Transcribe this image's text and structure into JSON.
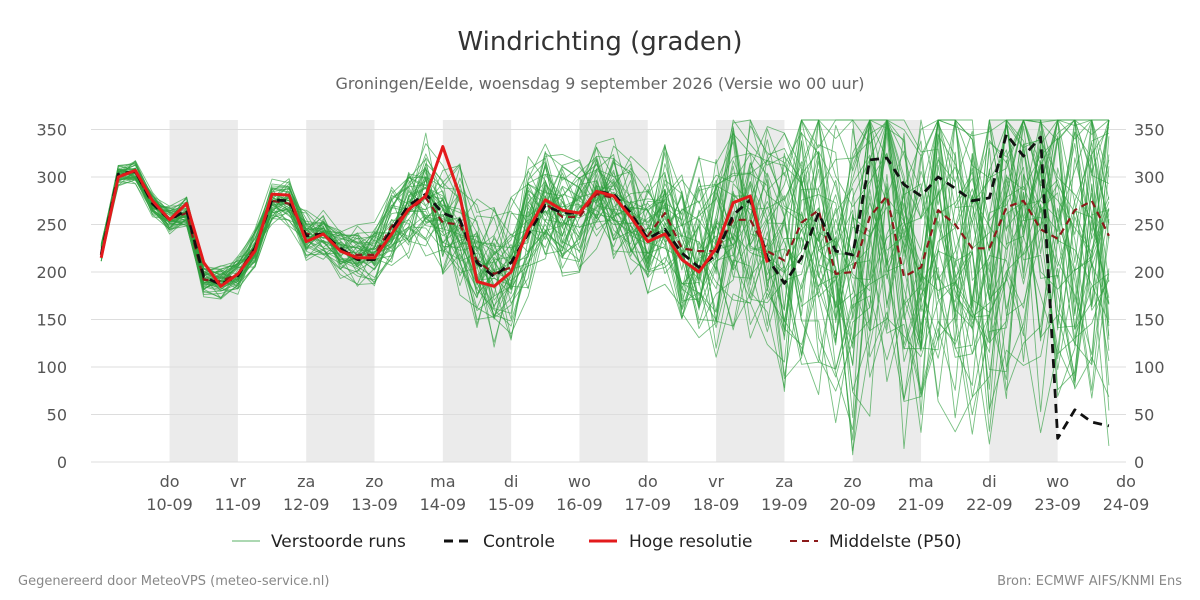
{
  "title": "Windrichting (graden)",
  "subtitle": "Groningen/Eelde, woensdag  9 september 2026 (Versie wo 00 uur)",
  "footer_left": "Gegenereerd door MeteoVPS (meteo-service.nl)",
  "footer_right": "Bron: ECMWF AIFS/KNMI Ens",
  "colors": {
    "ensemble": "#2e9e3e",
    "control": "#111111",
    "hires": "#e31a1c",
    "median": "#8b1a1a",
    "shade": "#ebebeb",
    "grid": "#dddddd"
  },
  "chart_data": {
    "type": "line",
    "title": "Windrichting (graden)",
    "subtitle": "Groningen/Eelde, woensdag  9 september 2026 (Versie wo 00 uur)",
    "x_unit": "days since 2026-09-09 00:00",
    "x_range": [
      -0.15,
      15.0
    ],
    "ylim": [
      0,
      360
    ],
    "yticks": [
      0,
      50,
      100,
      150,
      200,
      250,
      300,
      350
    ],
    "grid": true,
    "legend_position": "bottom",
    "weekend_shading": [
      [
        1,
        2
      ],
      [
        3,
        4
      ],
      [
        5,
        6
      ],
      [
        7,
        8
      ],
      [
        9,
        10
      ],
      [
        11,
        12
      ],
      [
        13,
        14
      ]
    ],
    "x_tick_labels": [
      {
        "x": 1,
        "day": "do",
        "date": "10-09"
      },
      {
        "x": 2,
        "day": "vr",
        "date": "11-09"
      },
      {
        "x": 3,
        "day": "za",
        "date": "12-09"
      },
      {
        "x": 4,
        "day": "zo",
        "date": "13-09"
      },
      {
        "x": 5,
        "day": "ma",
        "date": "14-09"
      },
      {
        "x": 6,
        "day": "di",
        "date": "15-09"
      },
      {
        "x": 7,
        "day": "wo",
        "date": "16-09"
      },
      {
        "x": 8,
        "day": "do",
        "date": "17-09"
      },
      {
        "x": 9,
        "day": "vr",
        "date": "18-09"
      },
      {
        "x": 10,
        "day": "za",
        "date": "19-09"
      },
      {
        "x": 11,
        "day": "zo",
        "date": "20-09"
      },
      {
        "x": 12,
        "day": "ma",
        "date": "21-09"
      },
      {
        "x": 13,
        "day": "di",
        "date": "22-09"
      },
      {
        "x": 14,
        "day": "wo",
        "date": "23-09"
      },
      {
        "x": 15,
        "day": "do",
        "date": "24-09"
      }
    ],
    "legend": [
      "Verstoorde runs",
      "Controle",
      "Hoge resolutie",
      "Middelste (P50)"
    ],
    "series": [
      {
        "name": "Hoge resolutie",
        "style": "solid-red",
        "x_start": 0,
        "x_step": 0.25,
        "values": [
          215,
          300,
          307,
          275,
          255,
          272,
          210,
          185,
          198,
          222,
          282,
          281,
          232,
          240,
          222,
          215,
          215,
          240,
          266,
          280,
          332,
          280,
          190,
          185,
          200,
          245,
          276,
          265,
          262,
          285,
          280,
          258,
          232,
          240,
          213,
          200,
          225,
          273,
          280,
          210
        ]
      },
      {
        "name": "Controle",
        "style": "dashed-black",
        "x_start": 0,
        "x_step": 0.25,
        "values": [
          218,
          303,
          306,
          272,
          255,
          265,
          195,
          187,
          196,
          225,
          276,
          275,
          238,
          240,
          225,
          213,
          213,
          245,
          270,
          282,
          262,
          255,
          210,
          195,
          210,
          240,
          270,
          262,
          262,
          285,
          282,
          262,
          235,
          245,
          220,
          205,
          218,
          260,
          276,
          215,
          188,
          215,
          262,
          222,
          218,
          318,
          320,
          292,
          280,
          300,
          288,
          275,
          278,
          345,
          322,
          342,
          25,
          55,
          42,
          38
        ]
      },
      {
        "name": "Middelste (P50)",
        "style": "dashed-darkred",
        "x_start": 0,
        "x_step": 0.25,
        "values": [
          220,
          302,
          305,
          272,
          256,
          262,
          192,
          190,
          198,
          226,
          275,
          272,
          240,
          240,
          222,
          218,
          218,
          248,
          265,
          278,
          252,
          250,
          212,
          198,
          205,
          245,
          272,
          258,
          258,
          282,
          278,
          262,
          238,
          262,
          225,
          222,
          222,
          255,
          255,
          222,
          212,
          252,
          265,
          198,
          200,
          258,
          280,
          195,
          205,
          265,
          250,
          225,
          225,
          268,
          275,
          245,
          235,
          265,
          275,
          238
        ]
      }
    ],
    "ensemble_members": {
      "name": "Verstoorde runs",
      "count": 50,
      "x_start": 0,
      "x_step": 0.25,
      "note_values": "member spread around P50: narrow (±20°) up to day 4, widening to full 0–360° range after day 10",
      "spread_profile": [
        [
          0,
          8
        ],
        [
          2,
          15
        ],
        [
          4,
          25
        ],
        [
          5,
          55
        ],
        [
          6,
          60
        ],
        [
          7,
          45
        ],
        [
          8,
          55
        ],
        [
          9,
          80
        ],
        [
          10,
          120
        ],
        [
          11,
          150
        ],
        [
          15,
          170
        ]
      ]
    }
  }
}
